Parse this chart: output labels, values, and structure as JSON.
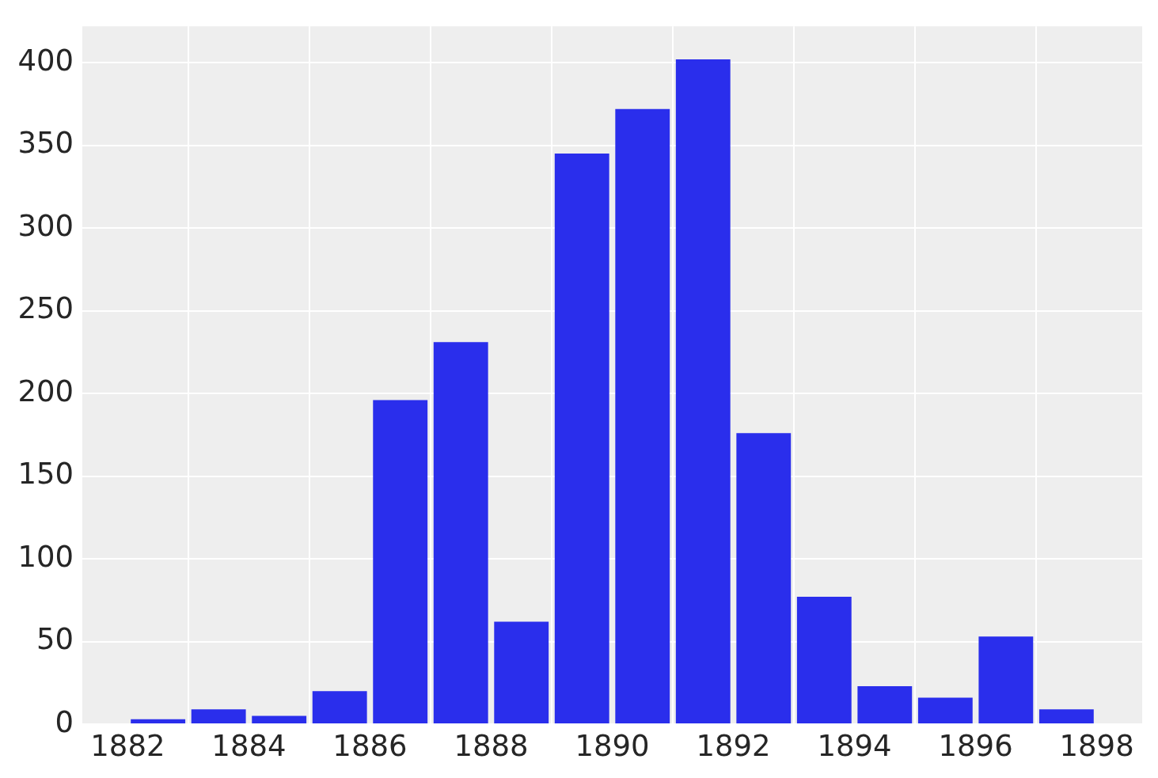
{
  "chart_data": {
    "type": "histogram",
    "bins": [
      1882,
      1883,
      1884,
      1885,
      1886,
      1887,
      1888,
      1889,
      1890,
      1891,
      1892,
      1893,
      1894,
      1895,
      1896,
      1897,
      1898
    ],
    "values": [
      3,
      9,
      5,
      20,
      196,
      231,
      62,
      345,
      372,
      402,
      176,
      77,
      23,
      16,
      53,
      9
    ],
    "color": "#2a2eec",
    "xlim": [
      1881.25,
      1898.75
    ],
    "ylim": [
      0,
      422
    ],
    "xticks": [
      1882,
      1884,
      1886,
      1888,
      1890,
      1892,
      1894,
      1896,
      1898
    ],
    "yticks": [
      0,
      50,
      100,
      150,
      200,
      250,
      300,
      350,
      400
    ],
    "grid": true
  }
}
